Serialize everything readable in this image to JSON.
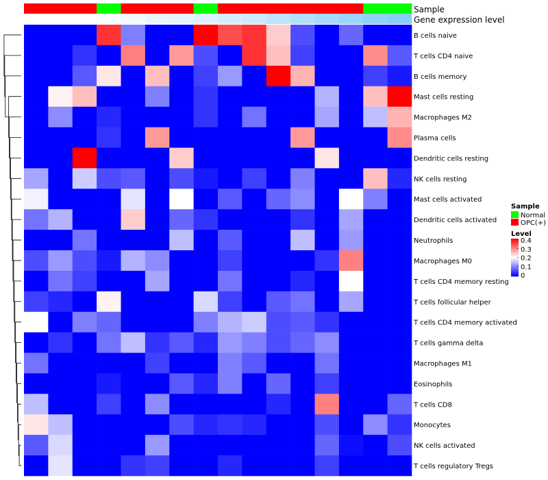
{
  "chart_data": {
    "type": "heatmap",
    "annotation_rows": [
      "Sample",
      "Gene expression level"
    ],
    "sample_groups": [
      "OPC(+)",
      "OPC(+)",
      "OPC(+)",
      "Normal",
      "OPC(+)",
      "OPC(+)",
      "OPC(+)",
      "Normal",
      "OPC(+)",
      "OPC(+)",
      "OPC(+)",
      "OPC(+)",
      "OPC(+)",
      "OPC(+)",
      "Normal",
      "Normal"
    ],
    "expression_level": [
      0.0,
      0.0,
      0.0,
      0.02,
      0.05,
      0.08,
      0.1,
      0.13,
      0.16,
      0.2,
      0.25,
      0.3,
      0.34,
      0.38,
      0.42,
      0.46
    ],
    "rows": [
      "B cells naive",
      "T cells CD4 naive",
      "B cells memory",
      "Mast cells resting",
      "Macrophages M2",
      "Plasma cells",
      "Dendritic cells resting",
      "NK cells resting",
      "Mast cells activated",
      "Dendritic cells activated",
      "Neutrophils",
      "Macrophages M0",
      "T cells CD4 memory resting",
      "T cells follicular helper",
      "T cells CD4 memory activated",
      "T cells gamma delta",
      "Macrophages M1",
      "Eosinophils",
      "T cells CD8",
      "Monocytes",
      "NK cells activated",
      "T cells regulatory  Tregs"
    ],
    "values": [
      [
        0,
        0,
        0,
        0.36,
        0.1,
        0,
        0,
        0.4,
        0.34,
        0.36,
        0.24,
        0.06,
        0,
        0.08,
        0,
        0
      ],
      [
        0,
        0,
        0.04,
        0,
        0.3,
        0,
        0.28,
        0.06,
        0,
        0.36,
        0.25,
        0.05,
        0,
        0,
        0.29,
        0.07
      ],
      [
        0,
        0,
        0.07,
        0.22,
        0,
        0.25,
        0,
        0.05,
        0.12,
        0,
        0.4,
        0.26,
        0,
        0,
        0.05,
        0.02
      ],
      [
        0,
        0.21,
        0.25,
        0,
        0,
        0.1,
        0,
        0.04,
        0,
        0,
        0,
        0,
        0.14,
        0,
        0.25,
        0.4
      ],
      [
        0,
        0.11,
        0,
        0.03,
        0,
        0,
        0,
        0.04,
        0,
        0.09,
        0,
        0,
        0.13,
        0,
        0.15,
        0.26
      ],
      [
        0,
        0,
        0,
        0.04,
        0,
        0.28,
        0,
        0,
        0,
        0,
        0,
        0.28,
        0,
        0,
        0,
        0.29
      ],
      [
        0,
        0,
        0.4,
        0,
        0,
        0,
        0.24,
        0,
        0,
        0,
        0,
        0,
        0.22,
        0,
        0,
        0
      ],
      [
        0.13,
        0,
        0.16,
        0.06,
        0.07,
        0,
        0.06,
        0.02,
        0,
        0.05,
        0,
        0.1,
        0,
        0,
        0.25,
        0.03
      ],
      [
        0.19,
        0,
        0,
        0,
        0.18,
        0,
        0.2,
        0,
        0.07,
        0,
        0.08,
        0.11,
        0,
        0.2,
        0.1,
        0
      ],
      [
        0.09,
        0.14,
        0,
        0,
        0.24,
        0,
        0.08,
        0.04,
        0,
        0,
        0,
        0.04,
        0,
        0.13,
        0,
        0
      ],
      [
        0,
        0,
        0.09,
        0,
        0,
        0,
        0.15,
        0,
        0.07,
        0,
        0,
        0.15,
        0,
        0.12,
        0,
        0
      ],
      [
        0.06,
        0.12,
        0.06,
        0.02,
        0.14,
        0.11,
        0,
        0,
        0.05,
        0,
        0,
        0,
        0.04,
        0.3,
        0,
        0
      ],
      [
        0,
        0.09,
        0.05,
        0,
        0,
        0.13,
        0,
        0,
        0.09,
        0,
        0,
        0.03,
        0,
        0.2,
        0,
        0
      ],
      [
        0.05,
        0.03,
        0,
        0.21,
        0,
        0,
        0,
        0.17,
        0.05,
        0,
        0.07,
        0.09,
        0,
        0.13,
        0,
        0
      ],
      [
        0.2,
        0,
        0.1,
        0.08,
        0,
        0,
        0,
        0.1,
        0.14,
        0.16,
        0.06,
        0.07,
        0.04,
        0,
        0,
        0
      ],
      [
        0,
        0.04,
        0,
        0.09,
        0.15,
        0.04,
        0.07,
        0.03,
        0.12,
        0.1,
        0.06,
        0.08,
        0.11,
        0,
        0,
        0
      ],
      [
        0.09,
        0,
        0,
        0,
        0,
        0.05,
        0,
        0,
        0.1,
        0.07,
        0,
        0,
        0.09,
        0,
        0,
        0
      ],
      [
        0,
        0,
        0,
        0.02,
        0,
        0,
        0.07,
        0.03,
        0.1,
        0,
        0.08,
        0,
        0.05,
        0,
        0,
        0
      ],
      [
        0.15,
        0,
        0,
        0.05,
        0,
        0.11,
        0,
        0,
        0,
        0,
        0.03,
        0,
        0.3,
        0,
        0,
        0.08
      ],
      [
        0.22,
        0.15,
        0,
        0,
        0,
        0,
        0.06,
        0.03,
        0.04,
        0.03,
        0,
        0,
        0.06,
        0,
        0.11,
        0.04
      ],
      [
        0.07,
        0.17,
        0,
        0,
        0,
        0.12,
        0,
        0,
        0,
        0,
        0,
        0,
        0.08,
        0.01,
        0,
        0.06
      ],
      [
        0,
        0.18,
        0,
        0,
        0.04,
        0.05,
        0,
        0,
        0.03,
        0,
        0,
        0,
        0.05,
        0,
        0,
        0
      ]
    ],
    "color_scale": {
      "low": "#0000ff",
      "mid": "#ffffff",
      "high": "#ff0000",
      "min": 0,
      "mid_value": 0.2,
      "max": 0.4
    },
    "expression_color_scale": {
      "low": "#ffffff",
      "high": "#87cefa"
    },
    "legend": {
      "sample_title": "Sample",
      "sample_entries": [
        {
          "label": "Normal",
          "color": "#00ff00"
        },
        {
          "label": "OPC(+)",
          "color": "#ff0000"
        }
      ],
      "level_title": "Level",
      "level_ticks": [
        "0.4",
        "0.3",
        "0.2",
        "0.1",
        "0"
      ],
      "placement": "right"
    }
  }
}
